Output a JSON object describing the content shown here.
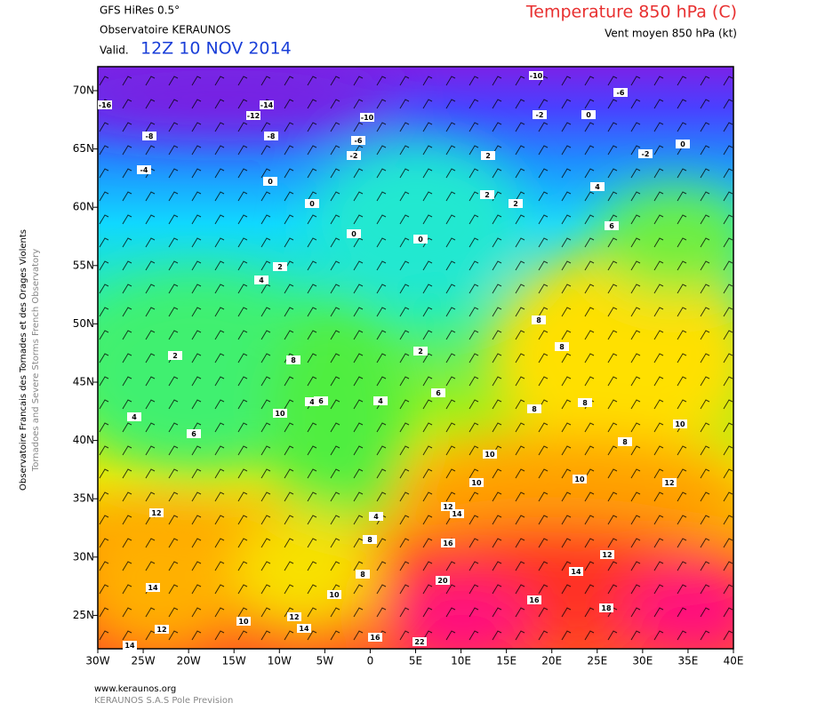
{
  "header": {
    "model": "GFS HiRes 0.5°",
    "observatory": "Observatoire KERAUNOS",
    "valid_prefix": "Valid.",
    "valid_date": "12Z 10 NOV 2014",
    "title": "Temperature 850 hPa (C)",
    "subtitle": "Vent moyen 850 hPa (kt)"
  },
  "side_text": [
    "Observatoire Francais des Tornades et des Orages Violents",
    "Tornadoes and Severe Storms French Observatory"
  ],
  "axes": {
    "lon_labels": [
      "30W",
      "25W",
      "20W",
      "15W",
      "10W",
      "5W",
      "0",
      "5E",
      "10E",
      "15E",
      "20E",
      "25E",
      "30E",
      "35E",
      "40E"
    ],
    "lat_labels": [
      "70N",
      "65N",
      "60N",
      "55N",
      "50N",
      "45N",
      "40N",
      "35N",
      "30N",
      "25N"
    ]
  },
  "contour_labels": [
    -10,
    -16,
    -14,
    -12,
    -10,
    -8,
    -8,
    -6,
    -2,
    -4,
    -2,
    0,
    -6,
    -2,
    0,
    0,
    0,
    0,
    0,
    2,
    2,
    2,
    2,
    4,
    4,
    6,
    8,
    8,
    2,
    8,
    2,
    6,
    4,
    6,
    4,
    8,
    8,
    10,
    4,
    6,
    8,
    10,
    10,
    10,
    10,
    12,
    12,
    4,
    12,
    14,
    8,
    16,
    12,
    14,
    20,
    14,
    10,
    8,
    16,
    18,
    12,
    14,
    10,
    12,
    16,
    22,
    14
  ],
  "footer": {
    "url": "www.keraunos.org",
    "company": "KERAUNOS S.A.S Pole Prevision"
  }
}
